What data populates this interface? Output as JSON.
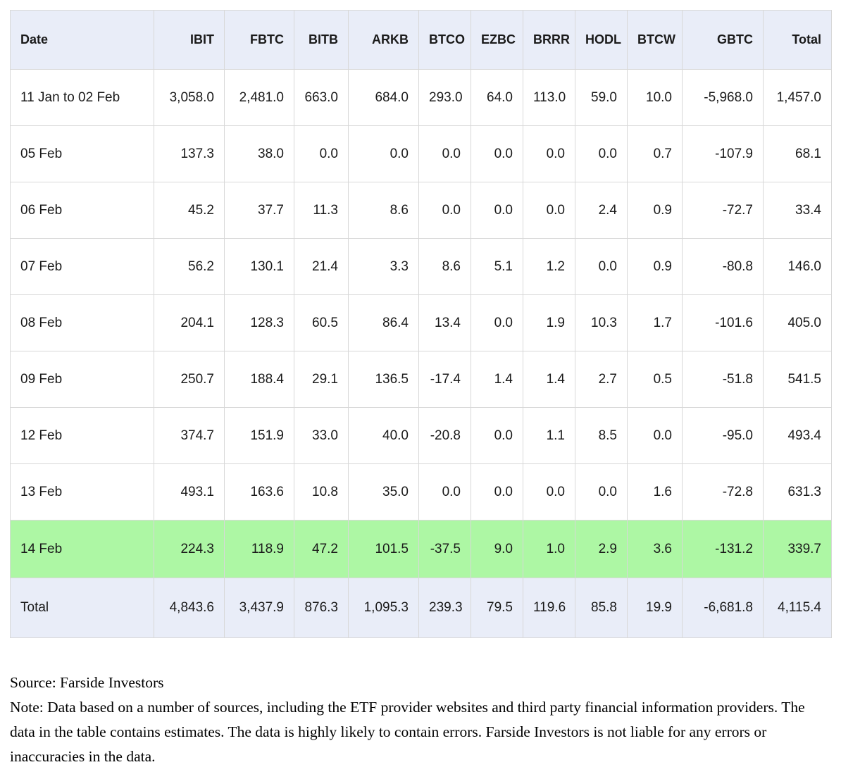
{
  "colors": {
    "header_bg": "#e9edf8",
    "highlight_row_bg": "#adf7a4",
    "total_row_bg": "#e9edf8",
    "grid_line": "#d8d8d8",
    "text": "#1a1a1a"
  },
  "table": {
    "columns": [
      {
        "label": "Date",
        "align": "left"
      },
      {
        "label": "IBIT",
        "align": "right"
      },
      {
        "label": "FBTC",
        "align": "right"
      },
      {
        "label": "BITB",
        "align": "right"
      },
      {
        "label": "ARKB",
        "align": "right"
      },
      {
        "label": "BTCO",
        "align": "right"
      },
      {
        "label": "EZBC",
        "align": "right"
      },
      {
        "label": "BRRR",
        "align": "right"
      },
      {
        "label": "HODL",
        "align": "right"
      },
      {
        "label": "BTCW",
        "align": "right"
      },
      {
        "label": "GBTC",
        "align": "right"
      },
      {
        "label": "Total",
        "align": "right"
      }
    ],
    "rows": [
      {
        "date": "11 Jan to 02 Feb",
        "highlight": "none",
        "values": [
          "3,058.0",
          "2,481.0",
          "663.0",
          "684.0",
          "293.0",
          "64.0",
          "113.0",
          "59.0",
          "10.0",
          "-5,968.0",
          "1,457.0"
        ]
      },
      {
        "date": "05 Feb",
        "highlight": "none",
        "values": [
          "137.3",
          "38.0",
          "0.0",
          "0.0",
          "0.0",
          "0.0",
          "0.0",
          "0.0",
          "0.7",
          "-107.9",
          "68.1"
        ]
      },
      {
        "date": "06 Feb",
        "highlight": "none",
        "values": [
          "45.2",
          "37.7",
          "11.3",
          "8.6",
          "0.0",
          "0.0",
          "0.0",
          "2.4",
          "0.9",
          "-72.7",
          "33.4"
        ]
      },
      {
        "date": "07 Feb",
        "highlight": "none",
        "values": [
          "56.2",
          "130.1",
          "21.4",
          "3.3",
          "8.6",
          "5.1",
          "1.2",
          "0.0",
          "0.9",
          "-80.8",
          "146.0"
        ]
      },
      {
        "date": "08 Feb",
        "highlight": "none",
        "values": [
          "204.1",
          "128.3",
          "60.5",
          "86.4",
          "13.4",
          "0.0",
          "1.9",
          "10.3",
          "1.7",
          "-101.6",
          "405.0"
        ]
      },
      {
        "date": "09 Feb",
        "highlight": "none",
        "values": [
          "250.7",
          "188.4",
          "29.1",
          "136.5",
          "-17.4",
          "1.4",
          "1.4",
          "2.7",
          "0.5",
          "-51.8",
          "541.5"
        ]
      },
      {
        "date": "12 Feb",
        "highlight": "none",
        "values": [
          "374.7",
          "151.9",
          "33.0",
          "40.0",
          "-20.8",
          "0.0",
          "1.1",
          "8.5",
          "0.0",
          "-95.0",
          "493.4"
        ]
      },
      {
        "date": "13 Feb",
        "highlight": "none",
        "values": [
          "493.1",
          "163.6",
          "10.8",
          "35.0",
          "0.0",
          "0.0",
          "0.0",
          "0.0",
          "1.6",
          "-72.8",
          "631.3"
        ]
      },
      {
        "date": "14 Feb",
        "highlight": "green",
        "values": [
          "224.3",
          "118.9",
          "47.2",
          "101.5",
          "-37.5",
          "9.0",
          "1.0",
          "2.9",
          "3.6",
          "-131.2",
          "339.7"
        ]
      },
      {
        "date": "Total",
        "highlight": "lavender",
        "values": [
          "4,843.6",
          "3,437.9",
          "876.3",
          "1,095.3",
          "239.3",
          "79.5",
          "119.6",
          "85.8",
          "19.9",
          "-6,681.8",
          "4,115.4"
        ]
      }
    ]
  },
  "footer": {
    "source": "Source: Farside Investors",
    "note": "Note: Data based on a number of sources, including the ETF provider websites and third party financial information providers. The data in the table contains estimates. The data is highly likely to contain errors. Farside Investors is not liable for any errors or inaccuracies in the data."
  },
  "chart_data": {
    "type": "table",
    "columns": [
      "Date",
      "IBIT",
      "FBTC",
      "BITB",
      "ARKB",
      "BTCO",
      "EZBC",
      "BRRR",
      "HODL",
      "BTCW",
      "GBTC",
      "Total"
    ],
    "rows": [
      [
        "11 Jan to 02 Feb",
        3058.0,
        2481.0,
        663.0,
        684.0,
        293.0,
        64.0,
        113.0,
        59.0,
        10.0,
        -5968.0,
        1457.0
      ],
      [
        "05 Feb",
        137.3,
        38.0,
        0.0,
        0.0,
        0.0,
        0.0,
        0.0,
        0.0,
        0.7,
        -107.9,
        68.1
      ],
      [
        "06 Feb",
        45.2,
        37.7,
        11.3,
        8.6,
        0.0,
        0.0,
        0.0,
        2.4,
        0.9,
        -72.7,
        33.4
      ],
      [
        "07 Feb",
        56.2,
        130.1,
        21.4,
        3.3,
        8.6,
        5.1,
        1.2,
        0.0,
        0.9,
        -80.8,
        146.0
      ],
      [
        "08 Feb",
        204.1,
        128.3,
        60.5,
        86.4,
        13.4,
        0.0,
        1.9,
        10.3,
        1.7,
        -101.6,
        405.0
      ],
      [
        "09 Feb",
        250.7,
        188.4,
        29.1,
        136.5,
        -17.4,
        1.4,
        1.4,
        2.7,
        0.5,
        -51.8,
        541.5
      ],
      [
        "12 Feb",
        374.7,
        151.9,
        33.0,
        40.0,
        -20.8,
        0.0,
        1.1,
        8.5,
        0.0,
        -95.0,
        493.4
      ],
      [
        "13 Feb",
        493.1,
        163.6,
        10.8,
        35.0,
        0.0,
        0.0,
        0.0,
        0.0,
        1.6,
        -72.8,
        631.3
      ],
      [
        "14 Feb",
        224.3,
        118.9,
        47.2,
        101.5,
        -37.5,
        9.0,
        1.0,
        2.9,
        3.6,
        -131.2,
        339.7
      ],
      [
        "Total",
        4843.6,
        3437.9,
        876.3,
        1095.3,
        239.3,
        79.5,
        119.6,
        85.8,
        19.9,
        -6681.8,
        4115.4
      ]
    ],
    "highlighted_row": "14 Feb",
    "layout": {
      "grid": true,
      "header_background": "#e9edf8",
      "highlight_background": "#adf7a4"
    }
  }
}
